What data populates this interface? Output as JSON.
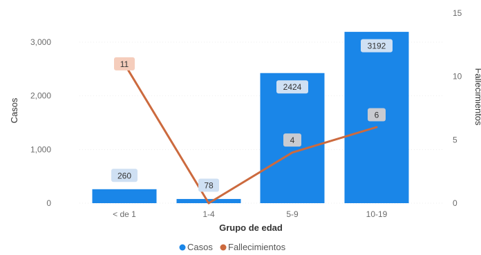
{
  "chart_data": {
    "type": "bar",
    "categories": [
      "< de 1",
      "1-4",
      "5-9",
      "10-19"
    ],
    "xlabel": "Grupo de edad",
    "ylabel": "Casos",
    "y2label": "Fallecimientos",
    "ylim": [
      0,
      3000
    ],
    "y2lim": [
      0,
      15
    ],
    "yticks": [
      "0",
      "1,000",
      "2,000",
      "3,000"
    ],
    "y2ticks": [
      "0",
      "5",
      "10",
      "15"
    ],
    "series": [
      {
        "name": "Casos",
        "kind": "bar",
        "axis": "left",
        "values": [
          260,
          78,
          2424,
          3192
        ],
        "labels": [
          "260",
          "78",
          "2424",
          "3192"
        ],
        "color": "#1a86e8"
      },
      {
        "name": "Fallecimientos",
        "kind": "line",
        "axis": "right",
        "values": [
          11,
          0,
          4,
          6
        ],
        "labels": [
          "11",
          "",
          "4",
          "6"
        ],
        "color": "#cc6a3e"
      }
    ],
    "legend": {
      "position": "bottom",
      "items": [
        "Casos",
        "Fallecimientos"
      ]
    },
    "grid": true
  }
}
